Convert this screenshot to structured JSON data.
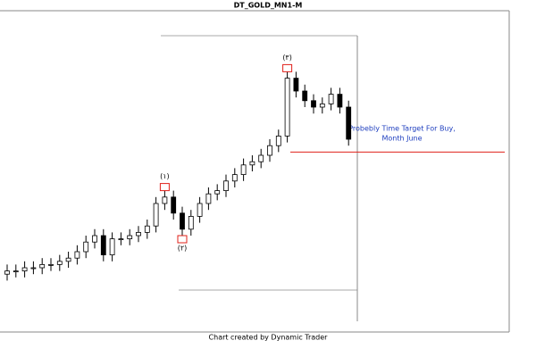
{
  "chart_data": {
    "type": "candlestick",
    "title": "DT_GOLD_MN1-M",
    "footer": "Chart created by Dynamic Trader",
    "annotation": [
      "Probebly Time Target For Buy,",
      "Month June"
    ],
    "wave_labels": [
      {
        "label": "(۱)",
        "index": 18
      },
      {
        "label": "(۲)",
        "index": 20
      },
      {
        "label": "(۳)",
        "index": 32
      }
    ],
    "target_price": 56,
    "ylim": [
      0,
      100
    ],
    "open": [
      18,
      19,
      19,
      20,
      20,
      21,
      21,
      22,
      23,
      25,
      28,
      30,
      24,
      29,
      29,
      30,
      31,
      33,
      40,
      42,
      37,
      32,
      36,
      40,
      43,
      44,
      47,
      49,
      52,
      53,
      55,
      58,
      61,
      79,
      75,
      72,
      70,
      71,
      74,
      70
    ],
    "high": [
      21,
      21,
      22,
      22,
      23,
      23,
      24,
      25,
      27,
      30,
      32,
      32,
      31,
      31,
      32,
      33,
      35,
      42,
      44,
      44,
      39,
      38,
      42,
      45,
      46,
      49,
      51,
      54,
      55,
      57,
      60,
      63,
      81,
      81,
      77,
      74,
      73,
      76,
      76,
      72
    ],
    "low": [
      16,
      17,
      17,
      18,
      18,
      19,
      19,
      20,
      21,
      23,
      26,
      22,
      22,
      27,
      27,
      28,
      29,
      31,
      38,
      35,
      30,
      30,
      34,
      38,
      41,
      42,
      45,
      47,
      50,
      51,
      53,
      56,
      59,
      73,
      70,
      68,
      68,
      69,
      68,
      58
    ],
    "close": [
      19,
      19,
      20,
      20,
      21,
      21,
      22,
      23,
      25,
      28,
      30,
      24,
      29,
      29,
      30,
      31,
      33,
      40,
      42,
      37,
      32,
      36,
      40,
      43,
      44,
      47,
      49,
      52,
      53,
      55,
      58,
      61,
      79,
      75,
      72,
      70,
      71,
      74,
      70,
      60
    ]
  }
}
